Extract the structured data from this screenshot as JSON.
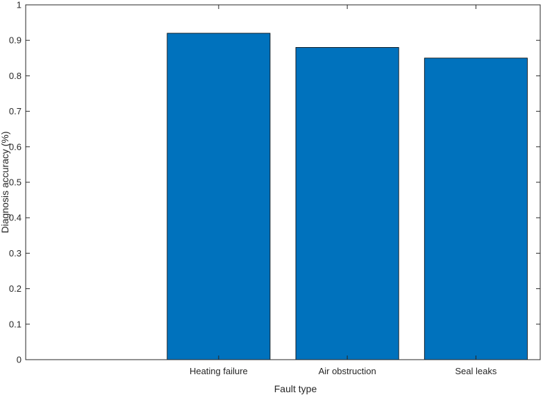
{
  "chart_data": {
    "type": "bar",
    "categories": [
      "Heating failure",
      "Air obstruction",
      "Seal leaks"
    ],
    "values": [
      0.92,
      0.88,
      0.85
    ],
    "xlabel": "Fault type",
    "ylabel": "Diagnosis accuracy  (%)",
    "ylim": [
      0,
      1
    ],
    "yticks": [
      "0",
      "0.1",
      "0.2",
      "0.3",
      "0.4",
      "0.5",
      "0.6",
      "0.7",
      "0.8",
      "0.9",
      "1"
    ],
    "x_range": [
      0.5,
      4.5
    ],
    "bar_color": "#0072BD",
    "grid": false,
    "box": true
  }
}
